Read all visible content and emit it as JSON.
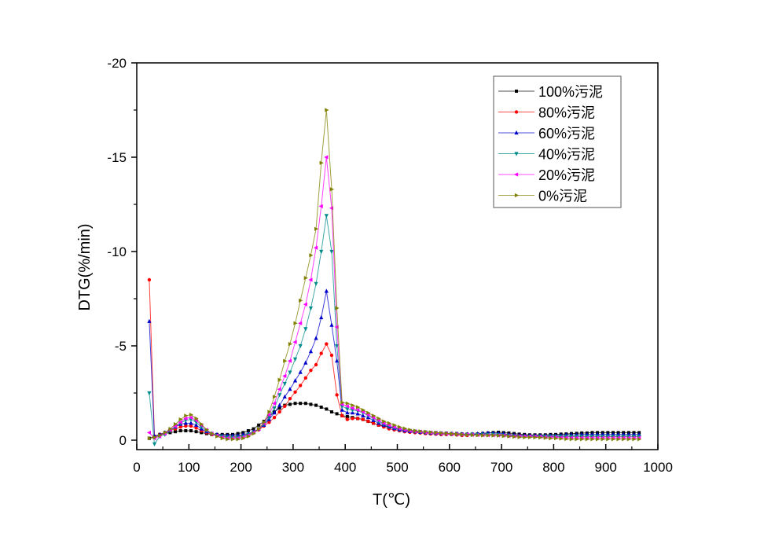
{
  "chart_data": {
    "type": "line",
    "title": "",
    "xlabel": "T(℃)",
    "ylabel": "DTG(%/min)",
    "xlim": [
      0,
      1000
    ],
    "ylim": [
      0,
      -20
    ],
    "y_inverted": true,
    "grid": false,
    "legend_position": "top-right",
    "x_ticks": [
      0,
      100,
      200,
      300,
      400,
      500,
      600,
      700,
      800,
      900,
      1000
    ],
    "x_tick_labels": [
      "0",
      "100",
      "200",
      "300",
      "400",
      "500",
      "600",
      "700",
      "800",
      "900",
      "1000"
    ],
    "y_ticks": [
      0,
      -5,
      -10,
      -15,
      -20
    ],
    "y_tick_labels": [
      "0",
      "-5",
      "-10",
      "-15",
      "-20"
    ],
    "x": [
      24,
      34,
      44,
      54,
      64,
      74,
      84,
      94,
      104,
      114,
      124,
      134,
      144,
      154,
      164,
      174,
      184,
      194,
      204,
      214,
      224,
      234,
      244,
      254,
      264,
      274,
      284,
      294,
      304,
      314,
      324,
      334,
      344,
      354,
      364,
      374,
      384,
      394,
      404,
      414,
      424,
      434,
      444,
      454,
      464,
      474,
      484,
      494,
      504,
      514,
      524,
      534,
      544,
      554,
      564,
      574,
      584,
      594,
      604,
      614,
      624,
      634,
      644,
      654,
      664,
      674,
      684,
      694,
      704,
      714,
      724,
      734,
      744,
      754,
      764,
      774,
      784,
      794,
      804,
      814,
      824,
      834,
      844,
      854,
      864,
      874,
      884,
      894,
      904,
      914,
      924,
      934,
      944,
      954,
      964
    ],
    "series": [
      {
        "name": "100%污泥",
        "color": "#000000",
        "marker": "square",
        "values": [
          -0.1,
          -0.2,
          -0.3,
          -0.35,
          -0.4,
          -0.45,
          -0.5,
          -0.5,
          -0.5,
          -0.45,
          -0.4,
          -0.35,
          -0.3,
          -0.3,
          -0.3,
          -0.3,
          -0.3,
          -0.35,
          -0.4,
          -0.5,
          -0.6,
          -0.8,
          -1.0,
          -1.25,
          -1.5,
          -1.7,
          -1.85,
          -1.9,
          -1.95,
          -1.95,
          -1.95,
          -1.9,
          -1.85,
          -1.75,
          -1.65,
          -1.5,
          -1.4,
          -1.3,
          -1.25,
          -1.2,
          -1.15,
          -1.1,
          -1.0,
          -0.9,
          -0.8,
          -0.75,
          -0.7,
          -0.65,
          -0.6,
          -0.55,
          -0.5,
          -0.48,
          -0.45,
          -0.43,
          -0.4,
          -0.4,
          -0.38,
          -0.37,
          -0.35,
          -0.35,
          -0.33,
          -0.32,
          -0.32,
          -0.33,
          -0.35,
          -0.38,
          -0.4,
          -0.42,
          -0.4,
          -0.38,
          -0.35,
          -0.32,
          -0.3,
          -0.28,
          -0.28,
          -0.28,
          -0.28,
          -0.3,
          -0.3,
          -0.32,
          -0.33,
          -0.35,
          -0.36,
          -0.38,
          -0.38,
          -0.4,
          -0.4,
          -0.4,
          -0.4,
          -0.4,
          -0.4,
          -0.4,
          -0.4,
          -0.4,
          -0.4
        ]
      },
      {
        "name": "80%污泥",
        "color": "#ff0000",
        "marker": "circle",
        "values": [
          -8.5,
          -0.2,
          -0.3,
          -0.4,
          -0.5,
          -0.6,
          -0.7,
          -0.75,
          -0.75,
          -0.65,
          -0.5,
          -0.4,
          -0.3,
          -0.25,
          -0.2,
          -0.2,
          -0.2,
          -0.2,
          -0.25,
          -0.3,
          -0.4,
          -0.55,
          -0.75,
          -0.95,
          -1.2,
          -1.5,
          -1.8,
          -2.2,
          -2.55,
          -2.9,
          -3.3,
          -3.7,
          -4.0,
          -4.6,
          -5.1,
          -4.5,
          -2.4,
          -1.3,
          -1.1,
          -1.15,
          -1.15,
          -1.1,
          -1.0,
          -0.9,
          -0.8,
          -0.7,
          -0.6,
          -0.55,
          -0.5,
          -0.45,
          -0.42,
          -0.4,
          -0.38,
          -0.35,
          -0.33,
          -0.32,
          -0.3,
          -0.3,
          -0.3,
          -0.28,
          -0.25,
          -0.25,
          -0.3,
          -0.3,
          -0.3,
          -0.3,
          -0.3,
          -0.3,
          -0.3,
          -0.28,
          -0.25,
          -0.25,
          -0.22,
          -0.2,
          -0.2,
          -0.2,
          -0.2,
          -0.2,
          -0.2,
          -0.2,
          -0.2,
          -0.2,
          -0.2,
          -0.2,
          -0.2,
          -0.2,
          -0.2,
          -0.2,
          -0.2,
          -0.2,
          -0.2,
          -0.2,
          -0.2,
          -0.2,
          -0.2
        ]
      },
      {
        "name": "60%污泥",
        "color": "#0000cc",
        "marker": "triangle-up",
        "values": [
          -6.3,
          -0.2,
          -0.3,
          -0.4,
          -0.55,
          -0.7,
          -0.85,
          -0.9,
          -0.9,
          -0.8,
          -0.6,
          -0.45,
          -0.35,
          -0.3,
          -0.25,
          -0.25,
          -0.25,
          -0.25,
          -0.3,
          -0.35,
          -0.45,
          -0.6,
          -0.8,
          -1.1,
          -1.45,
          -1.85,
          -2.3,
          -2.7,
          -3.15,
          -3.6,
          -4.1,
          -4.7,
          -5.4,
          -6.5,
          -7.9,
          -6.1,
          -4.2,
          -1.6,
          -1.45,
          -1.45,
          -1.4,
          -1.3,
          -1.2,
          -1.05,
          -0.9,
          -0.8,
          -0.7,
          -0.62,
          -0.55,
          -0.5,
          -0.47,
          -0.45,
          -0.42,
          -0.4,
          -0.38,
          -0.36,
          -0.35,
          -0.35,
          -0.33,
          -0.32,
          -0.32,
          -0.32,
          -0.32,
          -0.34,
          -0.36,
          -0.38,
          -0.38,
          -0.36,
          -0.34,
          -0.3,
          -0.28,
          -0.26,
          -0.25,
          -0.24,
          -0.24,
          -0.24,
          -0.24,
          -0.25,
          -0.25,
          -0.26,
          -0.28,
          -0.28,
          -0.28,
          -0.3,
          -0.3,
          -0.3,
          -0.3,
          -0.3,
          -0.3,
          -0.3,
          -0.3,
          -0.3,
          -0.3,
          -0.3,
          -0.3
        ]
      },
      {
        "name": "40%污泥",
        "color": "#008b8b",
        "marker": "triangle-down",
        "values": [
          -2.5,
          0.2,
          -0.2,
          -0.3,
          -0.5,
          -0.7,
          -0.9,
          -1.05,
          -1.1,
          -0.95,
          -0.7,
          -0.5,
          -0.35,
          -0.25,
          -0.2,
          -0.15,
          -0.15,
          -0.15,
          -0.2,
          -0.3,
          -0.4,
          -0.6,
          -0.85,
          -1.2,
          -1.7,
          -2.4,
          -3.0,
          -3.6,
          -4.3,
          -5.0,
          -5.9,
          -7.0,
          -8.3,
          -10.0,
          -11.9,
          -10.0,
          -5.0,
          -1.8,
          -1.65,
          -1.6,
          -1.55,
          -1.45,
          -1.3,
          -1.15,
          -1.0,
          -0.85,
          -0.75,
          -0.65,
          -0.6,
          -0.55,
          -0.5,
          -0.47,
          -0.45,
          -0.42,
          -0.4,
          -0.38,
          -0.37,
          -0.35,
          -0.33,
          -0.32,
          -0.3,
          -0.3,
          -0.3,
          -0.3,
          -0.3,
          -0.3,
          -0.3,
          -0.28,
          -0.26,
          -0.24,
          -0.22,
          -0.2,
          -0.2,
          -0.2,
          -0.2,
          -0.2,
          -0.2,
          -0.2,
          -0.2,
          -0.2,
          -0.2,
          -0.2,
          -0.2,
          -0.2,
          -0.2,
          -0.2,
          -0.2,
          -0.2,
          -0.2,
          -0.2,
          -0.2,
          -0.2,
          -0.2,
          -0.2,
          -0.2
        ]
      },
      {
        "name": "20%污泥",
        "color": "#ff00ff",
        "marker": "triangle-left",
        "values": [
          -0.4,
          -0.1,
          -0.2,
          -0.35,
          -0.55,
          -0.75,
          -0.95,
          -1.15,
          -1.2,
          -1.05,
          -0.8,
          -0.55,
          -0.35,
          -0.25,
          -0.15,
          -0.1,
          -0.1,
          -0.1,
          -0.15,
          -0.25,
          -0.4,
          -0.6,
          -0.9,
          -1.35,
          -1.95,
          -2.7,
          -3.4,
          -4.2,
          -5.2,
          -6.2,
          -7.2,
          -8.5,
          -10.2,
          -12.4,
          -15.0,
          -12.3,
          -6.0,
          -1.9,
          -1.8,
          -1.7,
          -1.6,
          -1.5,
          -1.35,
          -1.2,
          -1.05,
          -0.9,
          -0.8,
          -0.7,
          -0.62,
          -0.55,
          -0.5,
          -0.47,
          -0.45,
          -0.42,
          -0.4,
          -0.38,
          -0.36,
          -0.35,
          -0.33,
          -0.32,
          -0.3,
          -0.3,
          -0.28,
          -0.27,
          -0.26,
          -0.26,
          -0.25,
          -0.25,
          -0.24,
          -0.22,
          -0.2,
          -0.2,
          -0.2,
          -0.2,
          -0.2,
          -0.18,
          -0.16,
          -0.15,
          -0.15,
          -0.14,
          -0.13,
          -0.12,
          -0.12,
          -0.12,
          -0.12,
          -0.12,
          -0.12,
          -0.12,
          -0.12,
          -0.12,
          -0.12,
          -0.12,
          -0.12,
          -0.12,
          -0.12
        ]
      },
      {
        "name": "0%污泥",
        "color": "#808000",
        "marker": "triangle-right",
        "values": [
          -0.1,
          -0.15,
          -0.25,
          -0.4,
          -0.6,
          -0.85,
          -1.1,
          -1.3,
          -1.35,
          -1.15,
          -0.85,
          -0.55,
          -0.35,
          -0.2,
          -0.1,
          -0.05,
          -0.05,
          -0.05,
          -0.1,
          -0.2,
          -0.35,
          -0.6,
          -0.95,
          -1.5,
          -2.3,
          -3.2,
          -4.2,
          -5.1,
          -6.2,
          -7.4,
          -8.6,
          -9.8,
          -11.2,
          -14.7,
          -17.5,
          -13.3,
          -7.0,
          -2.0,
          -1.95,
          -1.85,
          -1.75,
          -1.6,
          -1.45,
          -1.3,
          -1.15,
          -1.0,
          -0.9,
          -0.8,
          -0.7,
          -0.62,
          -0.55,
          -0.5,
          -0.47,
          -0.45,
          -0.42,
          -0.4,
          -0.38,
          -0.36,
          -0.34,
          -0.32,
          -0.3,
          -0.28,
          -0.27,
          -0.26,
          -0.25,
          -0.25,
          -0.25,
          -0.24,
          -0.22,
          -0.2,
          -0.18,
          -0.16,
          -0.15,
          -0.15,
          -0.15,
          -0.14,
          -0.12,
          -0.1,
          -0.1,
          -0.08,
          -0.06,
          -0.05,
          -0.05,
          -0.05,
          -0.05,
          -0.05,
          -0.05,
          -0.05,
          -0.05,
          -0.05,
          -0.05,
          -0.05,
          -0.05,
          -0.05,
          -0.05
        ]
      }
    ]
  }
}
